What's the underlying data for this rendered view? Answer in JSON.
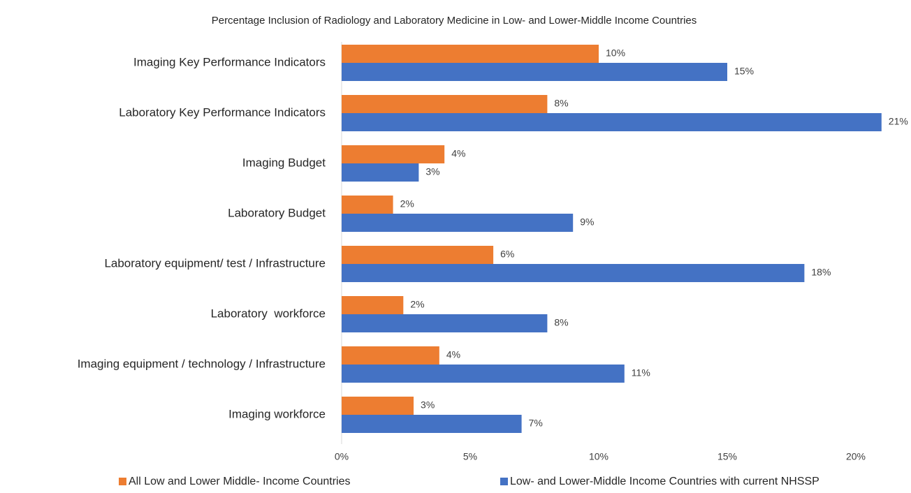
{
  "chart_data": {
    "type": "barh",
    "title": "Percentage Inclusion of Radiology and Laboratory Medicine in Low- and Lower-Middle Income Countries",
    "categories": [
      "Imaging Key Performance Indicators",
      "Laboratory Key Performance Indicators",
      "Imaging Budget",
      "Laboratory Budget",
      "Laboratory equipment/ test / Infrastructure",
      "Laboratory  workforce",
      "Imaging equipment / technology / Infrastructure",
      "Imaging workforce"
    ],
    "series": [
      {
        "name": "All Low and Lower Middle- Income Countries",
        "color": "#ed7d31",
        "values": [
          10,
          8,
          4,
          2,
          5.9,
          2.4,
          3.8,
          2.8
        ],
        "value_labels": [
          "10%",
          "8%",
          "4%",
          "2%",
          "6%",
          "2%",
          "4%",
          "3%"
        ]
      },
      {
        "name": "Low- and Lower-Middle Income Countries with current NHSSP",
        "color": "#4472c4",
        "values": [
          15,
          21,
          3,
          9,
          18,
          8,
          11,
          7
        ],
        "value_labels": [
          "15%",
          "21%",
          "3%",
          "9%",
          "18%",
          "8%",
          "11%",
          "7%"
        ]
      }
    ],
    "xlim": [
      0,
      22
    ],
    "xticks": [
      {
        "value": 0,
        "label": "0%"
      },
      {
        "value": 5,
        "label": "5%"
      },
      {
        "value": 10,
        "label": "10%"
      },
      {
        "value": 15,
        "label": "15%"
      },
      {
        "value": 20,
        "label": "20%"
      }
    ],
    "legend": "bottom"
  }
}
